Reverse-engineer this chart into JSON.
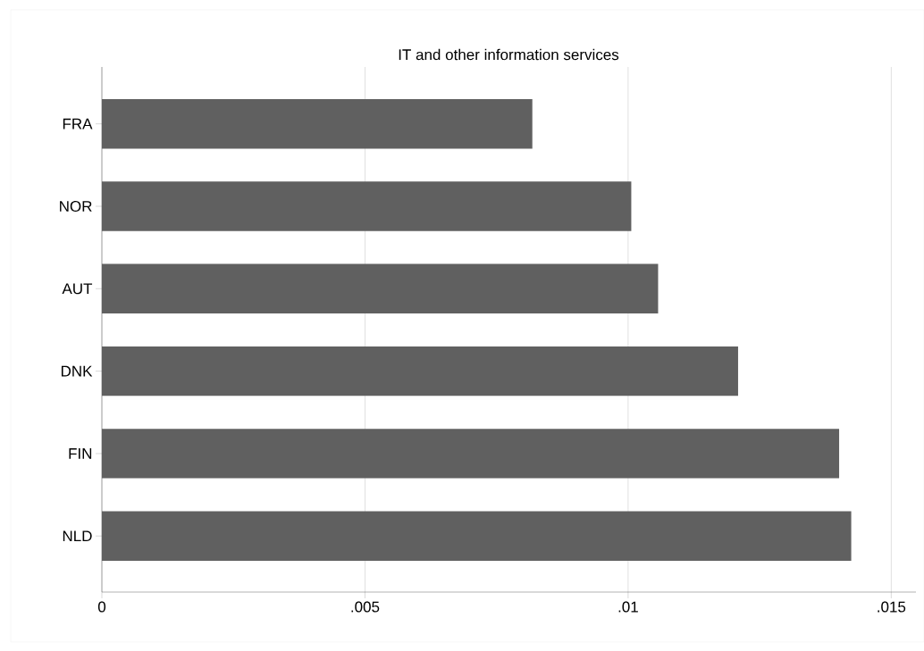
{
  "chart_data": {
    "type": "bar",
    "orientation": "horizontal",
    "title": "IT and other information services",
    "categories": [
      "FRA",
      "NOR",
      "AUT",
      "DNK",
      "FIN",
      "NLD"
    ],
    "values": [
      0.00818,
      0.01006,
      0.01057,
      0.01209,
      0.01401,
      0.01424
    ],
    "color": "#606060",
    "xlim": [
      0,
      0.01547
    ],
    "xticks": [
      {
        "value": 0,
        "label": "0"
      },
      {
        "value": 0.005,
        "label": ".005"
      },
      {
        "value": 0.01,
        "label": ".01"
      },
      {
        "value": 0.015,
        "label": ".015"
      }
    ],
    "grid": "x"
  }
}
